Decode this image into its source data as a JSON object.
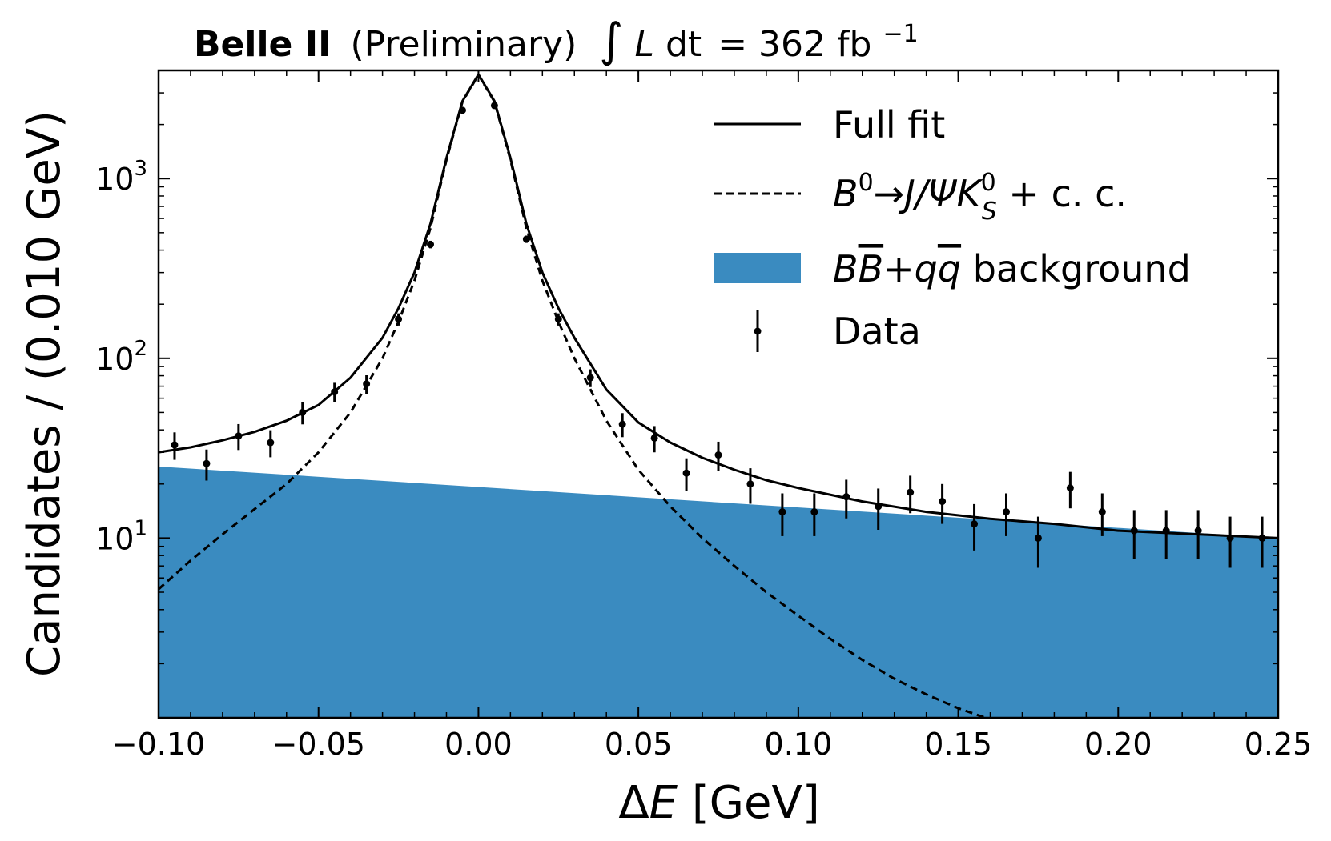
{
  "chart_data": {
    "type": "line",
    "title": {
      "experiment": "Belle II",
      "status": "(Preliminary)",
      "lumi_prefix": "∫",
      "lumi_var": "L",
      "lumi_dt": "dt",
      "lumi_value": "= 362 fb",
      "lumi_exp": "−1"
    },
    "xlabel": {
      "symbol": "Δ",
      "var": "E",
      "unit": " [GeV]"
    },
    "ylabel": "Candidates / (0.010 GeV)",
    "xlim": [
      -0.1,
      0.25
    ],
    "ylim": [
      1.0,
      4000
    ],
    "yscale": "log",
    "x_ticks": [
      {
        "value": -0.1,
        "label": "−0.10"
      },
      {
        "value": -0.05,
        "label": "−0.05"
      },
      {
        "value": 0.0,
        "label": "0.00"
      },
      {
        "value": 0.05,
        "label": "0.05"
      },
      {
        "value": 0.1,
        "label": "0.10"
      },
      {
        "value": 0.15,
        "label": "0.15"
      },
      {
        "value": 0.2,
        "label": "0.20"
      },
      {
        "value": 0.25,
        "label": "0.25"
      }
    ],
    "y_ticks": [
      {
        "value": 10,
        "base": "10",
        "exp": "1"
      },
      {
        "value": 100,
        "base": "10",
        "exp": "2"
      },
      {
        "value": 1000,
        "base": "10",
        "exp": "3"
      }
    ],
    "legend": {
      "position": "top-right",
      "full_fit": "Full fit",
      "signal": {
        "b": "B",
        "b_exp": "0",
        "arrow": "→",
        "jpsi": "J/Ψ",
        "k": "K",
        "k_exp": "0",
        "k_sub": "S",
        "cc": " + c. c."
      },
      "background": {
        "b1": "B",
        "b2": "B",
        "plus": "+",
        "q1": "q",
        "q2": "q",
        "word": " background"
      },
      "data": "Data"
    },
    "series": [
      {
        "name": "Data",
        "style": "errorbar",
        "x": [
          -0.095,
          -0.085,
          -0.075,
          -0.065,
          -0.055,
          -0.045,
          -0.035,
          -0.025,
          -0.015,
          -0.005,
          0.005,
          0.015,
          0.025,
          0.035,
          0.045,
          0.055,
          0.065,
          0.075,
          0.085,
          0.095,
          0.105,
          0.115,
          0.125,
          0.135,
          0.145,
          0.155,
          0.165,
          0.175,
          0.185,
          0.195,
          0.205,
          0.215,
          0.225,
          0.235,
          0.245
        ],
        "y": [
          33,
          26,
          37,
          34,
          50,
          65,
          72,
          165,
          430,
          2400,
          2550,
          460,
          165,
          78,
          43,
          36,
          23,
          29,
          20,
          14,
          14,
          17,
          15,
          18,
          16,
          12,
          14,
          10,
          19,
          14,
          11,
          11,
          11,
          10,
          10
        ]
      },
      {
        "name": "Full fit",
        "style": "solid",
        "x": [
          -0.1,
          -0.09,
          -0.08,
          -0.07,
          -0.06,
          -0.05,
          -0.04,
          -0.03,
          -0.025,
          -0.02,
          -0.015,
          -0.01,
          -0.005,
          0.0,
          0.005,
          0.01,
          0.015,
          0.02,
          0.025,
          0.03,
          0.04,
          0.05,
          0.06,
          0.07,
          0.08,
          0.09,
          0.1,
          0.12,
          0.14,
          0.16,
          0.18,
          0.2,
          0.22,
          0.25
        ],
        "y": [
          30,
          32,
          35,
          39,
          45,
          55,
          78,
          130,
          190,
          300,
          560,
          1300,
          2700,
          3800,
          2700,
          1300,
          560,
          300,
          190,
          130,
          67,
          44,
          34,
          28,
          24,
          21,
          19,
          16,
          14,
          12.8,
          12,
          11,
          10.6,
          10
        ]
      },
      {
        "name": "B0→J/ΨKS0 + c.c.",
        "style": "dashed",
        "x": [
          -0.1,
          -0.09,
          -0.08,
          -0.07,
          -0.06,
          -0.05,
          -0.04,
          -0.03,
          -0.025,
          -0.02,
          -0.015,
          -0.01,
          -0.005,
          0.0,
          0.005,
          0.01,
          0.015,
          0.02,
          0.025,
          0.03,
          0.04,
          0.05,
          0.06,
          0.07,
          0.08,
          0.09,
          0.1,
          0.11,
          0.12,
          0.13,
          0.14,
          0.15,
          0.16,
          0.165
        ],
        "y": [
          5.2,
          7.5,
          10.5,
          14.5,
          20,
          30,
          50,
          100,
          160,
          270,
          530,
          1270,
          2680,
          3780,
          2680,
          1270,
          530,
          270,
          160,
          100,
          45,
          24,
          15,
          10,
          7.0,
          5.0,
          3.7,
          2.75,
          2.1,
          1.65,
          1.35,
          1.13,
          0.98,
          0.93
        ]
      },
      {
        "name": "BB+qq background",
        "style": "fill",
        "color": "#3a8bc0",
        "x": [
          -0.1,
          0.25
        ],
        "y": [
          25,
          10
        ]
      }
    ]
  }
}
